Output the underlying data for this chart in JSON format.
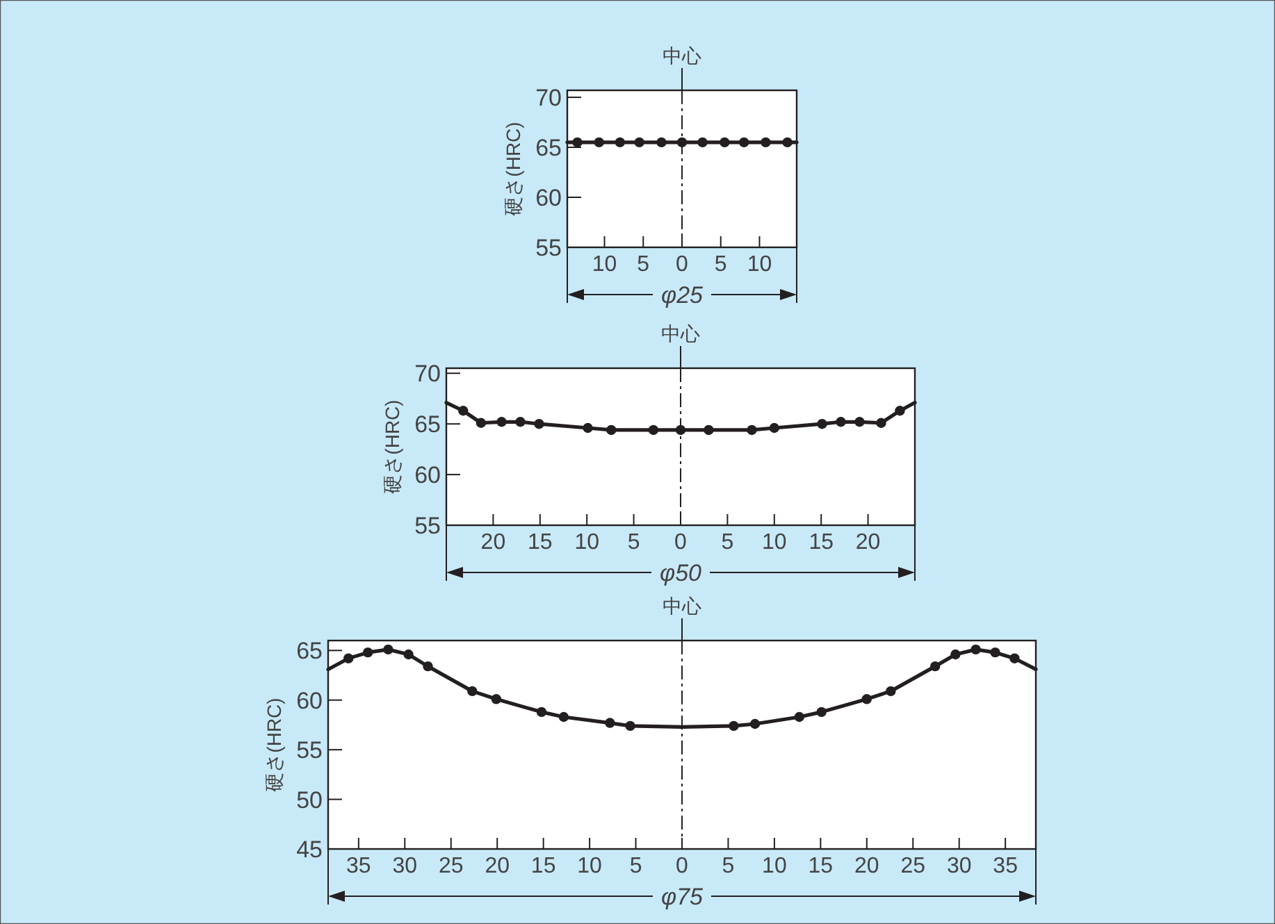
{
  "chart_data": [
    {
      "type": "line",
      "ylabel": "硬さ(HRC)",
      "xlabel": "φ25",
      "xlim": [
        -14.8,
        14.8
      ],
      "ylim": [
        55,
        70.7
      ],
      "xticks": [
        {
          "value": -10,
          "label": "10"
        },
        {
          "value": -5,
          "label": "5"
        },
        0,
        5,
        10
      ],
      "yticks": [
        55,
        60,
        65,
        70
      ],
      "ref_lines": [
        {
          "axis": "x",
          "value": 0,
          "label": "中心",
          "line_style": "dashed",
          "color": "#231f20"
        }
      ],
      "series": [
        {
          "type": "line",
          "marker": "none",
          "color": "#231f20",
          "x": [
            -14.8,
            14.8
          ],
          "values": [
            65.5,
            65.5
          ]
        },
        {
          "type": "scatter",
          "marker": "circle",
          "color": "#231f20",
          "x": [
            -13.5,
            -10.7,
            -8.0,
            -5.5,
            -2.65,
            0,
            2.65,
            5.5,
            8.0,
            10.8,
            13.6
          ],
          "values": [
            65.5,
            65.5,
            65.5,
            65.5,
            65.5,
            65.5,
            65.5,
            65.5,
            65.5,
            65.5,
            65.5
          ]
        }
      ]
    },
    {
      "type": "line",
      "ylabel": "硬さ(HRC)",
      "xlabel": "φ50",
      "xlim": [
        -25,
        25
      ],
      "ylim": [
        55,
        70.5
      ],
      "xticks": [
        {
          "value": -20,
          "label": "20"
        },
        {
          "value": -15,
          "label": "15"
        },
        {
          "value": -10,
          "label": "10"
        },
        {
          "value": -5,
          "label": "5"
        },
        0,
        5,
        10,
        15,
        20
      ],
      "yticks": [
        55,
        60,
        65,
        70
      ],
      "ref_lines": [
        {
          "axis": "x",
          "value": 0,
          "label": "中心",
          "line_style": "dashed",
          "color": "#231f20"
        }
      ],
      "series": [
        {
          "type": "line",
          "marker": "none",
          "color": "#231f20",
          "x": [
            -25,
            -23.2,
            -21.3,
            -19.1,
            -17.1,
            -15.1,
            -9.9,
            -7.4,
            -2.9,
            0,
            3.0,
            7.6,
            10.0,
            15.1,
            17.1,
            19.1,
            21.4,
            23.4,
            25
          ],
          "values": [
            67.1,
            66.3,
            65.1,
            65.2,
            65.2,
            65.0,
            64.6,
            64.4,
            64.4,
            64.4,
            64.4,
            64.4,
            64.6,
            65.0,
            65.2,
            65.2,
            65.1,
            66.3,
            67.1
          ]
        },
        {
          "type": "scatter",
          "marker": "circle",
          "color": "#231f20",
          "x": [
            -23.2,
            -21.3,
            -19.1,
            -17.1,
            -15.1,
            -9.9,
            -7.4,
            -2.9,
            0,
            3.0,
            7.6,
            10.0,
            15.1,
            17.1,
            19.1,
            21.4,
            23.4
          ],
          "values": [
            66.3,
            65.1,
            65.2,
            65.2,
            65.0,
            64.6,
            64.4,
            64.4,
            64.4,
            64.4,
            64.4,
            64.6,
            65.0,
            65.2,
            65.2,
            65.1,
            66.3
          ]
        }
      ]
    },
    {
      "type": "line",
      "ylabel": "硬さ(HRC)",
      "xlabel": "φ75",
      "xlim": [
        -38.3,
        38.3
      ],
      "ylim": [
        45,
        66
      ],
      "xticks": [
        {
          "value": -35,
          "label": "35"
        },
        {
          "value": -30,
          "label": "30"
        },
        {
          "value": -25,
          "label": "25"
        },
        {
          "value": -20,
          "label": "20"
        },
        {
          "value": -15,
          "label": "15"
        },
        {
          "value": -10,
          "label": "10"
        },
        {
          "value": -5,
          "label": "5"
        },
        0,
        5,
        10,
        15,
        20,
        25,
        30,
        35
      ],
      "yticks": [
        45,
        50,
        55,
        60,
        65
      ],
      "ref_lines": [
        {
          "axis": "x",
          "value": 0,
          "label": "中心",
          "line_style": "dashed",
          "color": "#231f20"
        }
      ],
      "series": [
        {
          "type": "line",
          "marker": "none",
          "color": "#231f20",
          "x": [
            -38.3,
            -36.1,
            -34.0,
            -31.8,
            -29.6,
            -27.5,
            -22.7,
            -20.1,
            -15.2,
            -12.8,
            -7.8,
            -5.6,
            0,
            5.6,
            7.9,
            12.7,
            15.1,
            20.0,
            22.6,
            27.4,
            29.6,
            31.8,
            33.9,
            36.0,
            38.3
          ],
          "values": [
            63.1,
            64.2,
            64.8,
            65.1,
            64.6,
            63.4,
            60.9,
            60.1,
            58.8,
            58.3,
            57.7,
            57.4,
            57.3,
            57.4,
            57.6,
            58.3,
            58.8,
            60.1,
            60.9,
            63.4,
            64.6,
            65.1,
            64.8,
            64.2,
            63.1
          ]
        },
        {
          "type": "scatter",
          "marker": "circle",
          "color": "#231f20",
          "x": [
            -36.1,
            -34.0,
            -31.8,
            -29.6,
            -27.5,
            -22.7,
            -20.1,
            -15.2,
            -12.8,
            -7.8,
            -5.6,
            5.6,
            7.9,
            12.7,
            15.1,
            20.0,
            22.6,
            27.4,
            29.6,
            31.8,
            33.9,
            36.0
          ],
          "values": [
            64.2,
            64.8,
            65.1,
            64.6,
            63.4,
            60.9,
            60.1,
            58.8,
            58.3,
            57.7,
            57.4,
            57.4,
            57.6,
            58.3,
            58.8,
            60.1,
            60.9,
            63.4,
            64.6,
            65.1,
            64.8,
            64.2
          ]
        }
      ]
    }
  ]
}
